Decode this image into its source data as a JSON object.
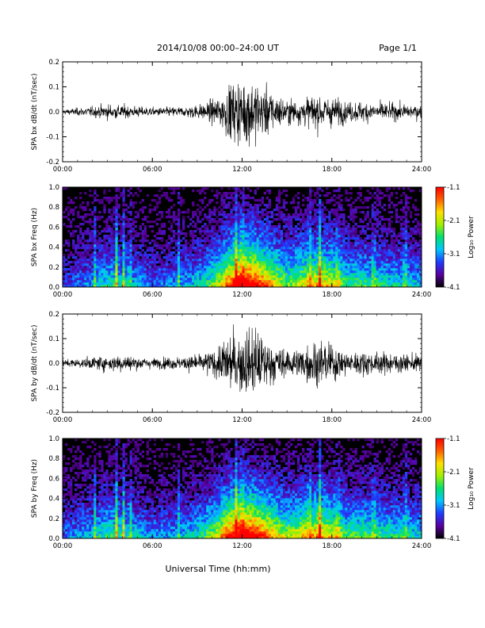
{
  "header": {
    "title": "2014/10/08  00:00–24:00 UT",
    "page": "Page 1/1"
  },
  "footer": {
    "xlabel": "Universal Time (hh:mm)"
  },
  "colors": {
    "waveform": "#000000",
    "spectrogram_background": "#000000",
    "colormap": [
      "#000000",
      "#5a00a0",
      "#1e3cff",
      "#00c8ff",
      "#00e070",
      "#a0f000",
      "#ffe000",
      "#ff6000",
      "#ff0000"
    ]
  },
  "chart_data": [
    {
      "type": "line",
      "ylabel": "SPA bx dB/dt (nT/sec)",
      "xlim": [
        0,
        24
      ],
      "ylim": [
        -0.2,
        0.2
      ],
      "yticks": [
        "-0.2",
        "-0.1",
        "0.0",
        "0.1",
        "0.2"
      ],
      "xticks": [
        "00:00",
        "06:00",
        "12:00",
        "18:00",
        "24:00"
      ],
      "grid": false,
      "amplitude_envelope": {
        "hours": [
          0,
          2,
          3,
          4,
          6,
          8,
          9.5,
          10.5,
          11,
          12,
          12.5,
          13,
          14,
          15,
          16,
          17,
          18,
          19,
          20,
          22,
          24
        ],
        "values": [
          0.015,
          0.03,
          0.045,
          0.04,
          0.025,
          0.03,
          0.05,
          0.09,
          0.15,
          0.2,
          0.2,
          0.18,
          0.12,
          0.07,
          0.08,
          0.1,
          0.09,
          0.06,
          0.06,
          0.05,
          0.04
        ]
      }
    },
    {
      "type": "heatmap",
      "ylabel": "SPA bx Freq (Hz)",
      "xlim": [
        0,
        24
      ],
      "ylim": [
        0,
        1.0
      ],
      "yticks": [
        "0.0",
        "0.2",
        "0.4",
        "0.6",
        "0.8",
        "1.0"
      ],
      "xticks": [
        "00:00",
        "06:00",
        "12:00",
        "18:00",
        "24:00"
      ],
      "colorbar": {
        "label": "Log₁₀ Power",
        "ticks": [
          "-1.1",
          "-2.1",
          "-3.1",
          "-4.1"
        ],
        "range": [
          -4.1,
          -1.1
        ]
      },
      "activity": {
        "hours": [
          0,
          2,
          3,
          4,
          6,
          8,
          9.5,
          10.5,
          11,
          12,
          12.5,
          13,
          14,
          15,
          16,
          17,
          18,
          19,
          20,
          22,
          24
        ],
        "values": [
          0.2,
          0.3,
          0.42,
          0.38,
          0.25,
          0.3,
          0.4,
          0.6,
          0.8,
          1.0,
          1.0,
          0.9,
          0.7,
          0.5,
          0.6,
          0.7,
          0.65,
          0.45,
          0.45,
          0.4,
          0.35
        ]
      },
      "bursts_hours": [
        2.2,
        3.6,
        4.1,
        4.5,
        7.8,
        11.6,
        12.0,
        16.5,
        17.2,
        18.4,
        20.8,
        22.9
      ]
    },
    {
      "type": "line",
      "ylabel": "SPA by dB/dt (nT/sec)",
      "xlim": [
        0,
        24
      ],
      "ylim": [
        -0.2,
        0.2
      ],
      "yticks": [
        "-0.2",
        "-0.1",
        "0.0",
        "0.1",
        "0.2"
      ],
      "xticks": [
        "00:00",
        "06:00",
        "12:00",
        "18:00",
        "24:00"
      ],
      "grid": false,
      "amplitude_envelope": {
        "hours": [
          0,
          2,
          3,
          4,
          6,
          8,
          9.5,
          10.5,
          11,
          12,
          12.5,
          13,
          14,
          15,
          16,
          17,
          18,
          19,
          20,
          22,
          24
        ],
        "values": [
          0.02,
          0.035,
          0.05,
          0.05,
          0.03,
          0.04,
          0.06,
          0.1,
          0.16,
          0.2,
          0.2,
          0.2,
          0.12,
          0.08,
          0.1,
          0.14,
          0.11,
          0.07,
          0.07,
          0.06,
          0.05
        ]
      }
    },
    {
      "type": "heatmap",
      "ylabel": "SPA by Freq (Hz)",
      "xlim": [
        0,
        24
      ],
      "ylim": [
        0,
        1.0
      ],
      "yticks": [
        "0.0",
        "0.2",
        "0.4",
        "0.6",
        "0.8",
        "1.0"
      ],
      "xticks": [
        "00:00",
        "06:00",
        "12:00",
        "18:00",
        "24:00"
      ],
      "colorbar": {
        "label": "Log₁₀ Power",
        "ticks": [
          "-1.1",
          "-2.1",
          "-3.1",
          "-4.1"
        ],
        "range": [
          -4.1,
          -1.1
        ]
      },
      "activity": {
        "hours": [
          0,
          2,
          3,
          4,
          6,
          8,
          9.5,
          10.5,
          11,
          12,
          12.5,
          13,
          14,
          15,
          16,
          17,
          18,
          19,
          20,
          22,
          24
        ],
        "values": [
          0.25,
          0.35,
          0.45,
          0.42,
          0.28,
          0.32,
          0.45,
          0.65,
          0.85,
          1.0,
          1.0,
          0.92,
          0.72,
          0.55,
          0.65,
          0.75,
          0.65,
          0.48,
          0.48,
          0.42,
          0.38
        ]
      },
      "bursts_hours": [
        2.2,
        3.6,
        4.1,
        4.5,
        7.8,
        11.6,
        12.0,
        16.5,
        17.2,
        18.4,
        20.8,
        22.9
      ]
    }
  ]
}
